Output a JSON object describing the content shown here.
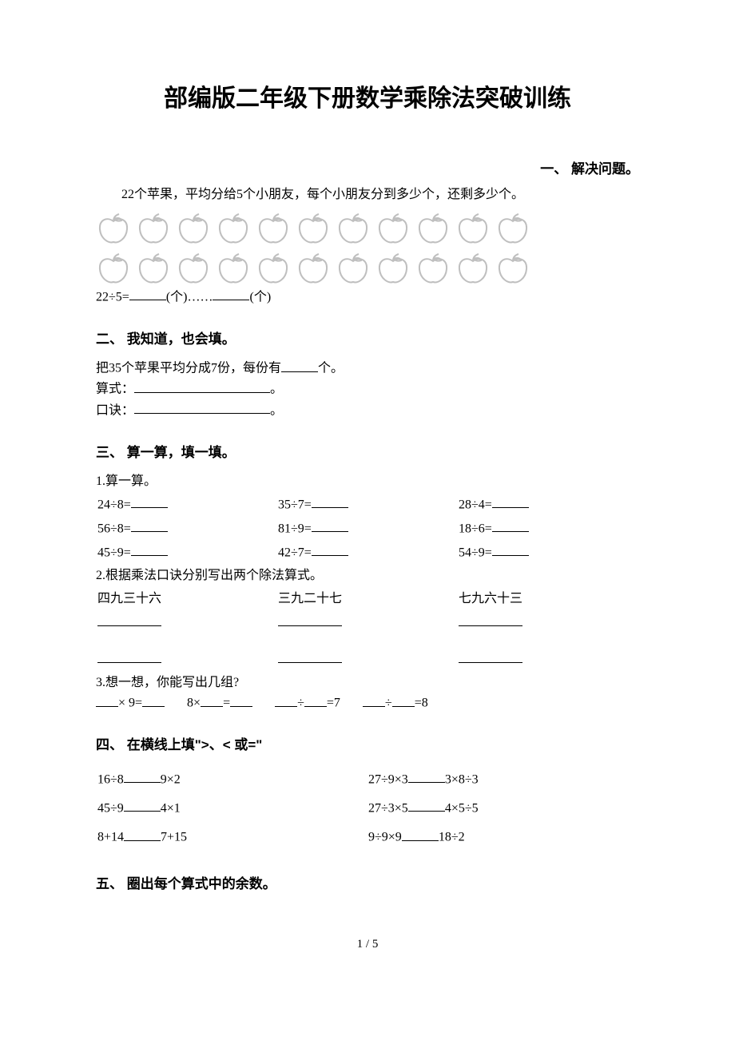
{
  "title": "部编版二年级下册数学乘除法突破训练",
  "s1": {
    "label": "一、 解决问题。",
    "problem": "22个苹果，平均分给5个小朋友，每个小朋友分到多少个，还剩多少个。",
    "apple_rows": [
      11,
      11
    ],
    "eq_prefix": "22÷5=",
    "unit1": "(个)……",
    "unit2": "(个)",
    "apple_color": "#bfbfbf"
  },
  "s2": {
    "label": "二、 我知道，也会填。",
    "line1_a": "把35个苹果平均分成7份，每份有",
    "line1_b": "个。",
    "line2": "算式：",
    "line2_end": "。",
    "line3": "口诀：",
    "line3_end": "。"
  },
  "s3": {
    "label": "三、 算一算，填一填。",
    "p1_label": "1.算一算。",
    "rows": [
      [
        "24÷8=",
        "35÷7=",
        "28÷4="
      ],
      [
        "56÷8=",
        "81÷9=",
        "18÷6="
      ],
      [
        "45÷9=",
        "42÷7=",
        "54÷9="
      ]
    ],
    "p2_label": "2.根据乘法口诀分别写出两个除法算式。",
    "p2_heads": [
      "四九三十六",
      "三九二十七",
      "七九六十三"
    ],
    "p3_label": "3.想一想，你能写出几组?",
    "p3_a": "× 9=",
    "p3_b": "8×",
    "p3_b2": "=",
    "p3_c": "÷",
    "p3_c2": "=7",
    "p3_d": "÷",
    "p3_d2": "=8"
  },
  "s4": {
    "label": "四、 在横线上填\">、< 或=\"",
    "rows": [
      [
        "16÷8",
        "9×2",
        "27÷9×3",
        "3×8÷3"
      ],
      [
        "45÷9",
        "4×1",
        "27÷3×5",
        "4×5÷5"
      ],
      [
        "8+14",
        "7+15",
        "9÷9×9",
        "18÷2"
      ]
    ]
  },
  "s5": {
    "label": "五、 圈出每个算式中的余数。"
  },
  "page": "1 / 5",
  "colors": {
    "text": "#000000",
    "bg": "#ffffff"
  }
}
